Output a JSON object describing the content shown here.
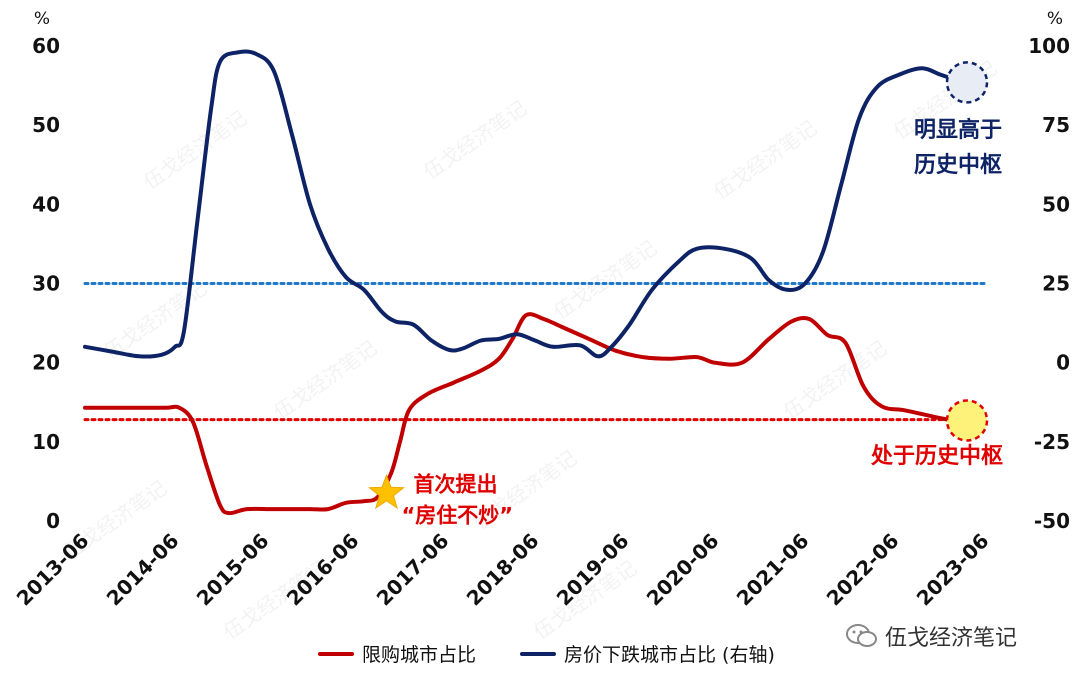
{
  "chart_data": {
    "type": "line",
    "x": [
      "2013-06",
      "2014-06",
      "2015-06",
      "2016-06",
      "2017-06",
      "2018-06",
      "2019-06",
      "2020-06",
      "2021-06",
      "2022-06",
      "2023-06"
    ],
    "series": [
      {
        "name": "限购城市占比",
        "axis": "left",
        "color": "#c00000",
        "points": [
          [
            2013.5,
            14.3
          ],
          [
            2013.8,
            14.3
          ],
          [
            2014.1,
            14.3
          ],
          [
            2014.4,
            14.3
          ],
          [
            2014.55,
            14.3
          ],
          [
            2014.7,
            12.5
          ],
          [
            2014.85,
            7.0
          ],
          [
            2015.0,
            2.0
          ],
          [
            2015.1,
            1.0
          ],
          [
            2015.3,
            1.5
          ],
          [
            2015.6,
            1.5
          ],
          [
            2016.0,
            1.5
          ],
          [
            2016.2,
            1.5
          ],
          [
            2016.4,
            2.3
          ],
          [
            2016.6,
            2.5
          ],
          [
            2016.75,
            3.0
          ],
          [
            2016.9,
            6.0
          ],
          [
            2017.0,
            10.0
          ],
          [
            2017.1,
            14.0
          ],
          [
            2017.3,
            16.0
          ],
          [
            2017.6,
            17.5
          ],
          [
            2017.9,
            19.0
          ],
          [
            2018.1,
            20.5
          ],
          [
            2018.25,
            23.0
          ],
          [
            2018.4,
            26.0
          ],
          [
            2018.6,
            25.5
          ],
          [
            2018.8,
            24.5
          ],
          [
            2019.1,
            23.0
          ],
          [
            2019.4,
            21.5
          ],
          [
            2019.7,
            20.7
          ],
          [
            2020.0,
            20.5
          ],
          [
            2020.3,
            20.7
          ],
          [
            2020.5,
            20.0
          ],
          [
            2020.8,
            20.0
          ],
          [
            2021.1,
            23.0
          ],
          [
            2021.35,
            25.2
          ],
          [
            2021.55,
            25.5
          ],
          [
            2021.75,
            23.5
          ],
          [
            2021.95,
            22.5
          ],
          [
            2022.15,
            17.0
          ],
          [
            2022.35,
            14.5
          ],
          [
            2022.6,
            14.0
          ],
          [
            2022.8,
            13.5
          ],
          [
            2023.0,
            13.0
          ],
          [
            2023.25,
            12.5
          ]
        ]
      },
      {
        "name": "房价下跌城市占比 (右轴)",
        "axis": "right",
        "color": "#0d2366",
        "points": [
          [
            2013.5,
            5.0
          ],
          [
            2013.8,
            3.5
          ],
          [
            2014.1,
            2.0
          ],
          [
            2014.35,
            2.5
          ],
          [
            2014.5,
            5.0
          ],
          [
            2014.6,
            10.0
          ],
          [
            2014.75,
            45.0
          ],
          [
            2014.9,
            80.0
          ],
          [
            2015.0,
            95.0
          ],
          [
            2015.2,
            98.0
          ],
          [
            2015.4,
            97.5
          ],
          [
            2015.6,
            92.0
          ],
          [
            2015.8,
            72.0
          ],
          [
            2016.0,
            50.0
          ],
          [
            2016.2,
            36.0
          ],
          [
            2016.4,
            27.0
          ],
          [
            2016.6,
            23.0
          ],
          [
            2016.8,
            16.0
          ],
          [
            2016.95,
            13.0
          ],
          [
            2017.15,
            12.0
          ],
          [
            2017.35,
            7.0
          ],
          [
            2017.55,
            4.0
          ],
          [
            2017.7,
            4.5
          ],
          [
            2017.9,
            7.0
          ],
          [
            2018.1,
            7.5
          ],
          [
            2018.3,
            9.0
          ],
          [
            2018.5,
            7.0
          ],
          [
            2018.7,
            5.0
          ],
          [
            2019.0,
            5.5
          ],
          [
            2019.2,
            2.0
          ],
          [
            2019.35,
            5.0
          ],
          [
            2019.55,
            12.0
          ],
          [
            2019.8,
            23.0
          ],
          [
            2020.1,
            32.0
          ],
          [
            2020.3,
            36.0
          ],
          [
            2020.6,
            36.0
          ],
          [
            2020.9,
            33.0
          ],
          [
            2021.1,
            26.0
          ],
          [
            2021.3,
            23.0
          ],
          [
            2021.5,
            25.0
          ],
          [
            2021.7,
            35.0
          ],
          [
            2021.9,
            56.0
          ],
          [
            2022.1,
            77.0
          ],
          [
            2022.3,
            87.0
          ],
          [
            2022.55,
            91.0
          ],
          [
            2022.8,
            93.0
          ],
          [
            2023.0,
            91.0
          ],
          [
            2023.2,
            89.0
          ],
          [
            2023.25,
            88.0
          ]
        ]
      }
    ],
    "x_range": [
      2013.5,
      2023.5
    ],
    "y_left": {
      "ticks": [
        0,
        10,
        20,
        30,
        40,
        50,
        60
      ],
      "labels": [
        "0",
        "10",
        "20",
        "30",
        "40",
        "50",
        "60"
      ],
      "range": [
        0,
        60
      ],
      "unit": "%"
    },
    "y_right": {
      "ticks": [
        -50,
        -25,
        0,
        25,
        50,
        75,
        100
      ],
      "labels": [
        "-50",
        "-25",
        "0",
        "25",
        "50",
        "75",
        "100"
      ],
      "range": [
        -50,
        100
      ],
      "unit": "%"
    },
    "reference_lines": [
      {
        "axis": "left",
        "value": 30,
        "color": "#1f78c8",
        "style": "dotted"
      },
      {
        "axis": "left",
        "value": 12.8,
        "color": "#e00000",
        "style": "dotted"
      }
    ],
    "annotations": [
      {
        "id": "first",
        "text_lines": [
          "首次提出",
          "“房住不炒”"
        ],
        "color": "#e00000",
        "point": [
          2016.85,
          3.5
        ],
        "axis": "left",
        "marker": "star"
      },
      {
        "id": "high",
        "text_lines": [
          "明显高于",
          "历史中枢"
        ],
        "color": "#0d2366",
        "point": [
          2023.3,
          88.5
        ],
        "axis": "right",
        "marker": "circle"
      },
      {
        "id": "mid",
        "text_lines": [
          "处于历史中枢"
        ],
        "color": "#e00000",
        "point": [
          2023.3,
          12.7
        ],
        "axis": "left",
        "marker": "circle"
      }
    ]
  },
  "watermark": "伍戈经济笔记",
  "brand": {
    "name": "伍戈经济笔记"
  }
}
